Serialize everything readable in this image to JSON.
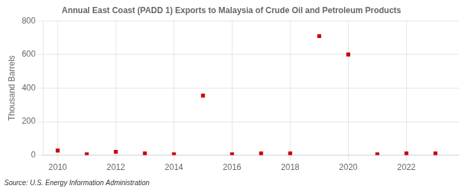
{
  "chart_data": {
    "type": "scatter",
    "title": "Annual East Coast (PADD 1) Exports to Malaysia of Crude Oil and Petroleum Products",
    "ylabel": "Thousand Barrels",
    "annotations": [
      "Source: U.S. Energy Information Administration"
    ],
    "x": [
      2010,
      2011,
      2012,
      2013,
      2014,
      2015,
      2016,
      2017,
      2018,
      2019,
      2020,
      2021,
      2022,
      2023
    ],
    "values": [
      28,
      5,
      20,
      10,
      5,
      355,
      5,
      10,
      10,
      710,
      600,
      5,
      10,
      10
    ],
    "color": "#cc0000",
    "marker": "square",
    "xlim": [
      2009.5,
      2023.8
    ],
    "xticks": [
      2010,
      2012,
      2014,
      2016,
      2018,
      2020,
      2022
    ],
    "ylim": [
      0,
      800
    ],
    "yticks": [
      0,
      200,
      400,
      600,
      800
    ],
    "grid": true
  }
}
